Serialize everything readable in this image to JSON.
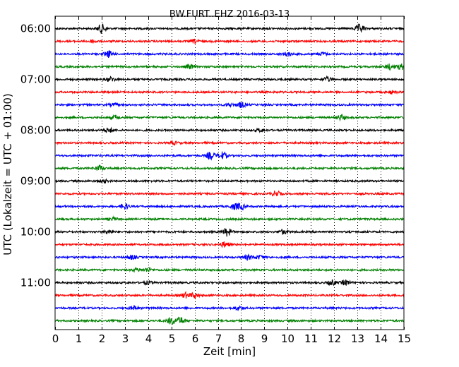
{
  "chart_data": {
    "type": "line",
    "title": "BW.FURT..EHZ 2016-03-13",
    "xlabel": "Zeit  [min]",
    "ylabel": "UTC (Lokalzeit = UTC + 01:00)",
    "xlim": [
      0,
      15
    ],
    "x_ticks": [
      "0",
      "1",
      "2",
      "3",
      "4",
      "5",
      "6",
      "7",
      "8",
      "9",
      "10",
      "11",
      "12",
      "13",
      "14",
      "15"
    ],
    "hour_labels": [
      "06:00",
      "07:00",
      "08:00",
      "09:00",
      "10:00",
      "11:00"
    ],
    "grid": "vertical dotted lines at each minute",
    "line_colors": [
      "#000000",
      "#ff0000",
      "#0000ff",
      "#008000"
    ],
    "rows_per_hour": 4,
    "rows": [
      {
        "color": "#000000",
        "bursts": [
          [
            2.0,
            1.0
          ],
          [
            13.1,
            0.9
          ]
        ]
      },
      {
        "color": "#ff0000",
        "bursts": [
          [
            1.6,
            0.3
          ],
          [
            6.0,
            0.4
          ]
        ]
      },
      {
        "color": "#0000ff",
        "bursts": [
          [
            2.3,
            0.7
          ],
          [
            10.0,
            0.45
          ],
          [
            11.5,
            0.35
          ]
        ]
      },
      {
        "color": "#008000",
        "bursts": [
          [
            5.8,
            0.5
          ],
          [
            14.4,
            0.6
          ],
          [
            14.9,
            0.6
          ]
        ]
      },
      {
        "color": "#000000",
        "bursts": [
          [
            2.4,
            0.5
          ],
          [
            11.7,
            0.5
          ]
        ]
      },
      {
        "color": "#ff0000",
        "bursts": [
          [
            14.5,
            0.3
          ]
        ]
      },
      {
        "color": "#0000ff",
        "bursts": [
          [
            2.5,
            0.3
          ],
          [
            7.5,
            0.3
          ],
          [
            8.0,
            0.6
          ]
        ]
      },
      {
        "color": "#008000",
        "bursts": [
          [
            2.6,
            0.45
          ],
          [
            12.3,
            0.6
          ]
        ]
      },
      {
        "color": "#000000",
        "bursts": [
          [
            2.3,
            0.5
          ],
          [
            8.8,
            0.3
          ]
        ]
      },
      {
        "color": "#ff0000",
        "bursts": [
          [
            5.1,
            0.3
          ]
        ]
      },
      {
        "color": "#0000ff",
        "bursts": [
          [
            6.7,
            0.8
          ],
          [
            7.2,
            0.8
          ]
        ]
      },
      {
        "color": "#008000",
        "bursts": [
          [
            1.9,
            0.6
          ]
        ]
      },
      {
        "color": "#000000",
        "bursts": [
          [
            2.1,
            0.3
          ]
        ]
      },
      {
        "color": "#ff0000",
        "bursts": [
          [
            9.5,
            0.6
          ]
        ]
      },
      {
        "color": "#0000ff",
        "bursts": [
          [
            3.0,
            0.6
          ],
          [
            7.7,
            0.6
          ],
          [
            8.0,
            0.6
          ]
        ]
      },
      {
        "color": "#008000",
        "bursts": [
          [
            2.5,
            0.35
          ]
        ]
      },
      {
        "color": "#000000",
        "bursts": [
          [
            2.3,
            0.45
          ],
          [
            7.4,
            0.9
          ],
          [
            9.8,
            0.45
          ]
        ]
      },
      {
        "color": "#ff0000",
        "bursts": [
          [
            7.3,
            0.6
          ]
        ]
      },
      {
        "color": "#0000ff",
        "bursts": [
          [
            3.3,
            0.45
          ],
          [
            8.3,
            0.5
          ],
          [
            8.8,
            0.4
          ]
        ]
      },
      {
        "color": "#008000",
        "bursts": [
          [
            3.5,
            0.35
          ],
          [
            4.0,
            0.45
          ]
        ]
      },
      {
        "color": "#000000",
        "bursts": [
          [
            4.0,
            0.35
          ],
          [
            11.9,
            0.55
          ],
          [
            12.5,
            0.55
          ]
        ]
      },
      {
        "color": "#ff0000",
        "bursts": [
          [
            5.6,
            0.55
          ],
          [
            6.0,
            0.55
          ]
        ]
      },
      {
        "color": "#0000ff",
        "bursts": [
          [
            3.4,
            0.45
          ],
          [
            7.9,
            0.45
          ]
        ]
      },
      {
        "color": "#008000",
        "bursts": [
          [
            5.0,
            0.8
          ],
          [
            5.4,
            0.8
          ]
        ]
      }
    ]
  }
}
